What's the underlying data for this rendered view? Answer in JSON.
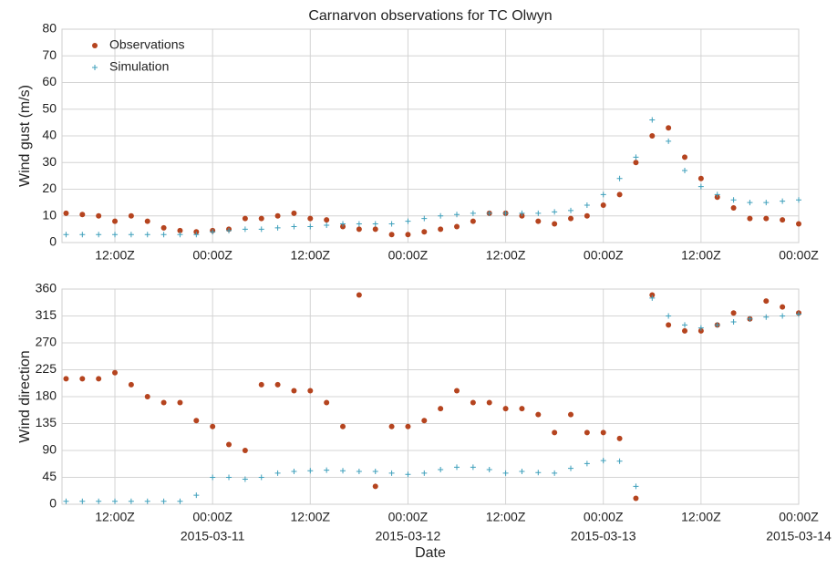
{
  "chart_data": [
    {
      "type": "scatter",
      "title": "Carnarvon observations for TC Olwyn",
      "ylabel": "Wind gust (m/s)",
      "x": [
        "2015-03-10T06:00Z",
        "2015-03-10T08:00Z",
        "2015-03-10T10:00Z",
        "2015-03-10T12:00Z",
        "2015-03-10T14:00Z",
        "2015-03-10T16:00Z",
        "2015-03-10T18:00Z",
        "2015-03-10T20:00Z",
        "2015-03-10T22:00Z",
        "2015-03-11T00:00Z",
        "2015-03-11T02:00Z",
        "2015-03-11T04:00Z",
        "2015-03-11T06:00Z",
        "2015-03-11T08:00Z",
        "2015-03-11T10:00Z",
        "2015-03-11T12:00Z",
        "2015-03-11T14:00Z",
        "2015-03-11T16:00Z",
        "2015-03-11T18:00Z",
        "2015-03-11T20:00Z",
        "2015-03-11T22:00Z",
        "2015-03-12T00:00Z",
        "2015-03-12T02:00Z",
        "2015-03-12T04:00Z",
        "2015-03-12T06:00Z",
        "2015-03-12T08:00Z",
        "2015-03-12T10:00Z",
        "2015-03-12T12:00Z",
        "2015-03-12T14:00Z",
        "2015-03-12T16:00Z",
        "2015-03-12T18:00Z",
        "2015-03-12T20:00Z",
        "2015-03-12T22:00Z",
        "2015-03-13T00:00Z",
        "2015-03-13T02:00Z",
        "2015-03-13T04:00Z",
        "2015-03-13T06:00Z",
        "2015-03-13T08:00Z",
        "2015-03-13T10:00Z",
        "2015-03-13T12:00Z",
        "2015-03-13T14:00Z",
        "2015-03-13T16:00Z",
        "2015-03-13T18:00Z",
        "2015-03-13T20:00Z",
        "2015-03-13T22:00Z",
        "2015-03-14T00:00Z"
      ],
      "series": [
        {
          "name": "Observations",
          "color": "#b5441f",
          "marker": "circle",
          "values": [
            11,
            10.5,
            10,
            8,
            10,
            8,
            5.5,
            4.5,
            4,
            4.5,
            5,
            9,
            9,
            10,
            11,
            9,
            8.5,
            6,
            5,
            5,
            3,
            3,
            4,
            5,
            6,
            8,
            11,
            11,
            10,
            8,
            7,
            9,
            10,
            14,
            18,
            30,
            40,
            43,
            32,
            24,
            17,
            13,
            9,
            9,
            8.5,
            7
          ]
        },
        {
          "name": "Simulation",
          "color": "#3d9fbb",
          "marker": "plus",
          "values": [
            3,
            3,
            3,
            3,
            3,
            3,
            3,
            3,
            3,
            4,
            4.5,
            5,
            5,
            5.5,
            6,
            6,
            6.5,
            7,
            7,
            7,
            7,
            8,
            9,
            10,
            10.5,
            11,
            11,
            11,
            11,
            11,
            11.5,
            12,
            14,
            18,
            24,
            32,
            46,
            38,
            27,
            21,
            18,
            16,
            15,
            15,
            15.5,
            16
          ]
        }
      ],
      "xlim": [
        "2015-03-10T05:30Z",
        "2015-03-14T00:00Z"
      ],
      "xticks": [
        {
          "value": "2015-03-10T12:00Z",
          "label": "12:00Z"
        },
        {
          "value": "2015-03-11T00:00Z",
          "label": "00:00Z"
        },
        {
          "value": "2015-03-11T12:00Z",
          "label": "12:00Z"
        },
        {
          "value": "2015-03-12T00:00Z",
          "label": "00:00Z"
        },
        {
          "value": "2015-03-12T12:00Z",
          "label": "12:00Z"
        },
        {
          "value": "2015-03-13T00:00Z",
          "label": "00:00Z"
        },
        {
          "value": "2015-03-13T12:00Z",
          "label": "12:00Z"
        },
        {
          "value": "2015-03-14T00:00Z",
          "label": "00:00Z"
        }
      ],
      "ylim": [
        0,
        80
      ],
      "yticks": [
        0,
        10,
        20,
        30,
        40,
        50,
        60,
        70,
        80
      ],
      "grid": true,
      "legend": "upper left"
    },
    {
      "type": "scatter",
      "ylabel": "Wind direction",
      "xlabel": "Date",
      "x": [
        "2015-03-10T06:00Z",
        "2015-03-10T08:00Z",
        "2015-03-10T10:00Z",
        "2015-03-10T12:00Z",
        "2015-03-10T14:00Z",
        "2015-03-10T16:00Z",
        "2015-03-10T18:00Z",
        "2015-03-10T20:00Z",
        "2015-03-10T22:00Z",
        "2015-03-11T00:00Z",
        "2015-03-11T02:00Z",
        "2015-03-11T04:00Z",
        "2015-03-11T06:00Z",
        "2015-03-11T08:00Z",
        "2015-03-11T10:00Z",
        "2015-03-11T12:00Z",
        "2015-03-11T14:00Z",
        "2015-03-11T16:00Z",
        "2015-03-11T18:00Z",
        "2015-03-11T20:00Z",
        "2015-03-11T22:00Z",
        "2015-03-12T00:00Z",
        "2015-03-12T02:00Z",
        "2015-03-12T04:00Z",
        "2015-03-12T06:00Z",
        "2015-03-12T08:00Z",
        "2015-03-12T10:00Z",
        "2015-03-12T12:00Z",
        "2015-03-12T14:00Z",
        "2015-03-12T16:00Z",
        "2015-03-12T18:00Z",
        "2015-03-12T20:00Z",
        "2015-03-12T22:00Z",
        "2015-03-13T00:00Z",
        "2015-03-13T02:00Z",
        "2015-03-13T04:00Z",
        "2015-03-13T06:00Z",
        "2015-03-13T08:00Z",
        "2015-03-13T10:00Z",
        "2015-03-13T12:00Z",
        "2015-03-13T14:00Z",
        "2015-03-13T16:00Z",
        "2015-03-13T18:00Z",
        "2015-03-13T20:00Z",
        "2015-03-13T22:00Z",
        "2015-03-14T00:00Z"
      ],
      "series": [
        {
          "color": "#b5441f",
          "marker": "circle",
          "values": [
            210,
            210,
            210,
            220,
            200,
            180,
            170,
            170,
            140,
            130,
            100,
            90,
            200,
            200,
            190,
            190,
            170,
            130,
            350,
            30,
            130,
            130,
            140,
            160,
            190,
            170,
            170,
            160,
            160,
            150,
            120,
            150,
            120,
            120,
            110,
            10,
            350,
            300,
            290,
            290,
            300,
            320,
            310,
            340,
            330,
            320
          ]
        },
        {
          "color": "#3d9fbb",
          "marker": "plus",
          "values": [
            5,
            5,
            5,
            5,
            5,
            5,
            5,
            5,
            15,
            45,
            45,
            42,
            45,
            52,
            55,
            56,
            57,
            56,
            55,
            55,
            52,
            50,
            52,
            58,
            62,
            62,
            58,
            52,
            55,
            53,
            52,
            60,
            68,
            73,
            72,
            30,
            345,
            315,
            300,
            295,
            300,
            305,
            310,
            313,
            315,
            318
          ]
        }
      ],
      "xlim": [
        "2015-03-10T05:30Z",
        "2015-03-14T00:00Z"
      ],
      "xticks": [
        {
          "value": "2015-03-10T12:00Z",
          "label": "12:00Z"
        },
        {
          "value": "2015-03-11T00:00Z",
          "label": "00:00Z"
        },
        {
          "value": "2015-03-11T12:00Z",
          "label": "12:00Z"
        },
        {
          "value": "2015-03-12T00:00Z",
          "label": "00:00Z"
        },
        {
          "value": "2015-03-12T12:00Z",
          "label": "12:00Z"
        },
        {
          "value": "2015-03-13T00:00Z",
          "label": "00:00Z"
        },
        {
          "value": "2015-03-13T12:00Z",
          "label": "12:00Z"
        },
        {
          "value": "2015-03-14T00:00Z",
          "label": "00:00Z"
        }
      ],
      "xdate_ticks": [
        {
          "value": "2015-03-11T00:00Z",
          "label": "2015-03-11"
        },
        {
          "value": "2015-03-12T00:00Z",
          "label": "2015-03-12"
        },
        {
          "value": "2015-03-13T00:00Z",
          "label": "2015-03-13"
        },
        {
          "value": "2015-03-14T00:00Z",
          "label": "2015-03-14"
        }
      ],
      "ylim": [
        0,
        360
      ],
      "yticks": [
        0,
        45,
        90,
        135,
        180,
        225,
        270,
        315,
        360
      ],
      "grid": true
    }
  ]
}
